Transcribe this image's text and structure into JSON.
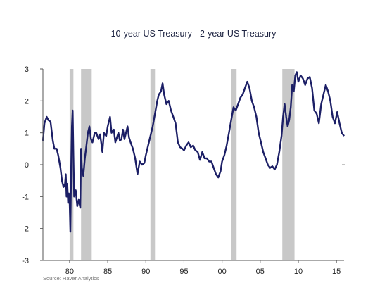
{
  "chart_data": {
    "type": "line",
    "title": "10-year US Treasury - 2-year US Treasury",
    "source": "Source:   Haver Analytics",
    "ylim": [
      -3,
      3
    ],
    "yticks": [
      3,
      2,
      1,
      0,
      -1,
      -2,
      -3
    ],
    "xlim": [
      1976.5,
      2016
    ],
    "xticks": [
      {
        "value": 1980,
        "label": "80"
      },
      {
        "value": 1985,
        "label": "85"
      },
      {
        "value": 1990,
        "label": "90"
      },
      {
        "value": 1995,
        "label": "95"
      },
      {
        "value": 2000,
        "label": "00"
      },
      {
        "value": 2005,
        "label": "05"
      },
      {
        "value": 2010,
        "label": "10"
      },
      {
        "value": 2015,
        "label": "15"
      }
    ],
    "recessions": [
      [
        1980.0,
        1980.5
      ],
      [
        1981.5,
        1982.9
      ],
      [
        1990.6,
        1991.2
      ],
      [
        2001.2,
        2001.9
      ],
      [
        2007.9,
        2009.5
      ]
    ],
    "colors": {
      "line": "#1c1f66",
      "recession": "#c8c8c8",
      "axis": "#555555"
    },
    "grid": false,
    "series": [
      {
        "x": [
          1976.5,
          1976.7,
          1977.0,
          1977.2,
          1977.5,
          1977.8,
          1978.0,
          1978.3,
          1978.5,
          1978.8,
          1979.0,
          1979.2,
          1979.4,
          1979.5,
          1979.6,
          1979.7,
          1979.8,
          1979.9,
          1980.0,
          1980.1,
          1980.2,
          1980.3,
          1980.4,
          1980.5,
          1980.6,
          1980.8,
          1981.0,
          1981.2,
          1981.4,
          1981.5,
          1981.6,
          1981.8,
          1982.0,
          1982.2,
          1982.4,
          1982.6,
          1982.8,
          1983.0,
          1983.3,
          1983.5,
          1983.8,
          1984.0,
          1984.3,
          1984.5,
          1984.8,
          1985.0,
          1985.3,
          1985.5,
          1985.8,
          1986.0,
          1986.2,
          1986.4,
          1986.6,
          1986.8,
          1987.0,
          1987.2,
          1987.4,
          1987.6,
          1987.8,
          1988.0,
          1988.3,
          1988.6,
          1988.9,
          1989.2,
          1989.5,
          1989.8,
          1990.0,
          1990.3,
          1990.6,
          1990.9,
          1991.2,
          1991.5,
          1991.7,
          1992.0,
          1992.2,
          1992.4,
          1992.7,
          1993.0,
          1993.3,
          1993.6,
          1993.9,
          1994.2,
          1994.5,
          1994.8,
          1995.0,
          1995.3,
          1995.6,
          1995.9,
          1996.2,
          1996.5,
          1996.8,
          1997.1,
          1997.4,
          1997.7,
          1998.0,
          1998.3,
          1998.6,
          1998.9,
          1999.2,
          1999.5,
          1999.8,
          2000.0,
          2000.3,
          2000.6,
          2000.9,
          2001.2,
          2001.5,
          2001.8,
          2002.1,
          2002.4,
          2002.7,
          2003.0,
          2003.3,
          2003.6,
          2003.9,
          2004.2,
          2004.5,
          2004.8,
          2005.1,
          2005.4,
          2005.7,
          2006.0,
          2006.3,
          2006.6,
          2006.9,
          2007.2,
          2007.5,
          2007.8,
          2008.0,
          2008.2,
          2008.4,
          2008.6,
          2008.8,
          2009.0,
          2009.2,
          2009.4,
          2009.6,
          2009.8,
          2010.0,
          2010.3,
          2010.6,
          2010.9,
          2011.2,
          2011.5,
          2011.8,
          2012.1,
          2012.4,
          2012.7,
          2013.0,
          2013.3,
          2013.6,
          2013.9,
          2014.2,
          2014.5,
          2014.8,
          2015.1,
          2015.4,
          2015.7,
          2016.0
        ],
        "values": [
          0.75,
          1.3,
          1.5,
          1.4,
          1.35,
          0.75,
          0.5,
          0.5,
          0.3,
          -0.1,
          -0.5,
          -0.7,
          -0.6,
          -0.3,
          -1.0,
          -0.6,
          -1.2,
          -0.9,
          -1.1,
          -2.1,
          -0.2,
          1.2,
          1.7,
          0.3,
          -1.0,
          -0.8,
          -1.3,
          -1.1,
          -1.35,
          0.5,
          -0.1,
          -0.35,
          0.2,
          0.6,
          1.0,
          1.2,
          0.8,
          0.7,
          1.0,
          1.0,
          0.8,
          0.95,
          0.4,
          1.0,
          0.9,
          1.2,
          1.5,
          1.0,
          1.1,
          0.7,
          0.85,
          1.0,
          0.75,
          0.8,
          1.1,
          0.8,
          1.0,
          1.2,
          0.85,
          0.7,
          0.5,
          0.2,
          -0.3,
          0.1,
          0.0,
          0.05,
          0.3,
          0.6,
          0.9,
          1.2,
          1.6,
          2.0,
          2.2,
          2.3,
          2.55,
          2.2,
          1.9,
          2.0,
          1.7,
          1.5,
          1.3,
          0.7,
          0.55,
          0.5,
          0.45,
          0.6,
          0.7,
          0.55,
          0.6,
          0.45,
          0.4,
          0.15,
          0.4,
          0.2,
          0.2,
          0.1,
          0.1,
          -0.1,
          -0.3,
          -0.4,
          -0.2,
          0.1,
          0.3,
          0.6,
          1.0,
          1.4,
          1.8,
          1.7,
          1.9,
          2.1,
          2.2,
          2.4,
          2.6,
          2.4,
          2.0,
          1.8,
          1.5,
          1.0,
          0.7,
          0.4,
          0.2,
          0.0,
          -0.1,
          -0.05,
          -0.15,
          0.0,
          0.4,
          0.9,
          1.5,
          1.9,
          1.5,
          1.2,
          1.4,
          1.8,
          2.5,
          2.3,
          2.8,
          2.9,
          2.6,
          2.8,
          2.7,
          2.5,
          2.7,
          2.75,
          2.4,
          1.7,
          1.6,
          1.3,
          1.9,
          2.2,
          2.5,
          2.3,
          2.0,
          1.5,
          1.3,
          1.65,
          1.3,
          1.0,
          0.9
        ]
      }
    ]
  }
}
